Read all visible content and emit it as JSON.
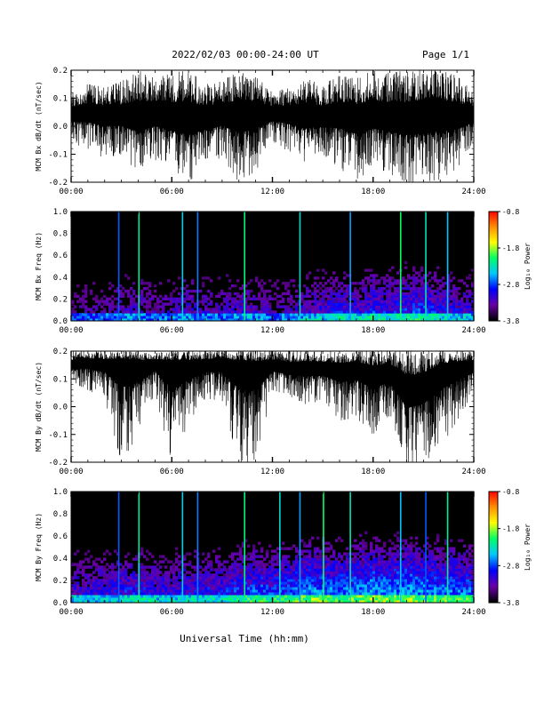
{
  "header": {
    "title": "2022/02/03  00:00-24:00 UT",
    "page": "Page 1/1"
  },
  "footer": {
    "xlabel": "Universal Time (hh:mm)"
  },
  "colorbar": {
    "label": "Log₁₀ Power",
    "ticks": [
      "-0.8",
      "-1.8",
      "-2.8",
      "-3.8"
    ],
    "tick_values": [
      -0.8,
      -1.8,
      -2.8,
      -3.8
    ],
    "range": [
      -3.8,
      -0.8
    ],
    "colormap": [
      "#000000",
      "#6a00a8",
      "#0000ff",
      "#00c8ff",
      "#00ff64",
      "#ffff00",
      "#ff8c00",
      "#ff0000"
    ]
  },
  "chart_data": [
    {
      "type": "line",
      "title": "",
      "ylabel": "MCM Bx dB/dt (nT/sec)",
      "xlabel": "",
      "xlim": [
        0,
        24
      ],
      "ylim": [
        -0.2,
        0.2
      ],
      "xticks": [
        "00:00",
        "06:00",
        "12:00",
        "18:00",
        "24:00"
      ],
      "yticks": [
        "0.2",
        "0.1",
        "0.0",
        "-0.1",
        "-0.2"
      ],
      "ytick_values": [
        0.2,
        0.1,
        0.0,
        -0.1,
        -0.2
      ],
      "grid": false,
      "series": [
        {
          "color": "#000000",
          "x": [
            0,
            1,
            2,
            3,
            4,
            5,
            6,
            7,
            8,
            9,
            10,
            11,
            12,
            13,
            14,
            15,
            16,
            17,
            18,
            19,
            20,
            21,
            22,
            23,
            24
          ],
          "baseline": [
            0.04,
            0.045,
            0.04,
            0.035,
            0.03,
            0.04,
            0.03,
            0.025,
            0.03,
            0.04,
            0.035,
            0.04,
            0.045,
            0.04,
            0.035,
            0.03,
            0.04,
            0.03,
            0.035,
            0.03,
            0.025,
            0.03,
            0.04,
            0.035,
            0.04
          ],
          "envelope_high": [
            0.12,
            0.15,
            0.14,
            0.16,
            0.2,
            0.17,
            0.19,
            0.2,
            0.15,
            0.16,
            0.2,
            0.18,
            0.12,
            0.14,
            0.17,
            0.15,
            0.18,
            0.17,
            0.2,
            0.19,
            0.2,
            0.2,
            0.2,
            0.18,
            0.12
          ],
          "envelope_low": [
            -0.06,
            -0.08,
            -0.12,
            -0.1,
            -0.17,
            -0.12,
            -0.15,
            -0.2,
            -0.14,
            -0.11,
            -0.2,
            -0.16,
            -0.06,
            -0.09,
            -0.13,
            -0.1,
            -0.15,
            -0.2,
            -0.14,
            -0.17,
            -0.2,
            -0.2,
            -0.19,
            -0.15,
            -0.06
          ]
        }
      ]
    },
    {
      "type": "heatmap",
      "title": "",
      "ylabel": "MCM Bx Freq (Hz)",
      "xlabel": "",
      "xlim": [
        0,
        24
      ],
      "ylim": [
        0.0,
        1.0
      ],
      "xticks": [
        "00:00",
        "06:00",
        "12:00",
        "18:00",
        "24:00"
      ],
      "yticks": [
        "1.0",
        "0.8",
        "0.6",
        "0.4",
        "0.2",
        "0.0"
      ],
      "ytick_values": [
        1.0,
        0.8,
        0.6,
        0.4,
        0.2,
        0.0
      ],
      "value_range": [
        -3.8,
        -0.8
      ],
      "activity_hourly": [
        0.25,
        0.25,
        0.3,
        0.35,
        0.4,
        0.3,
        0.35,
        0.4,
        0.35,
        0.35,
        0.45,
        0.4,
        0.3,
        0.35,
        0.45,
        0.5,
        0.55,
        0.5,
        0.6,
        0.55,
        0.6,
        0.65,
        0.55,
        0.5,
        0.45
      ],
      "strong_lines_hours": [
        2.8,
        4.0,
        6.6,
        7.5,
        10.3,
        13.6,
        16.6,
        19.6,
        21.1,
        22.4
      ]
    },
    {
      "type": "line",
      "title": "",
      "ylabel": "MCM By dB/dt (nT/sec)",
      "xlabel": "",
      "xlim": [
        0,
        24
      ],
      "ylim": [
        -0.2,
        0.2
      ],
      "xticks": [
        "00:00",
        "06:00",
        "12:00",
        "18:00",
        "24:00"
      ],
      "yticks": [
        "0.2",
        "0.1",
        "0.0",
        "-0.1",
        "-0.2"
      ],
      "ytick_values": [
        0.2,
        0.1,
        0.0,
        -0.1,
        -0.2
      ],
      "grid": false,
      "series": [
        {
          "color": "#000000",
          "x": [
            0,
            1,
            2,
            3,
            4,
            5,
            6,
            7,
            8,
            9,
            10,
            11,
            12,
            13,
            14,
            15,
            16,
            17,
            18,
            19,
            20,
            21,
            22,
            23,
            24
          ],
          "baseline": [
            0.15,
            0.16,
            0.155,
            0.16,
            0.15,
            0.155,
            0.15,
            0.15,
            0.155,
            0.16,
            0.15,
            0.145,
            0.15,
            0.14,
            0.145,
            0.14,
            0.135,
            0.14,
            0.12,
            0.13,
            0.06,
            0.08,
            0.13,
            0.14,
            0.15
          ],
          "envelope_high": [
            0.2,
            0.2,
            0.2,
            0.2,
            0.2,
            0.2,
            0.2,
            0.2,
            0.2,
            0.2,
            0.2,
            0.2,
            0.2,
            0.2,
            0.2,
            0.2,
            0.2,
            0.2,
            0.2,
            0.2,
            0.2,
            0.2,
            0.2,
            0.2,
            0.2
          ],
          "envelope_low": [
            0.09,
            0.06,
            0.03,
            -0.2,
            -0.1,
            0.05,
            -0.2,
            -0.07,
            0.03,
            0.02,
            -0.2,
            -0.2,
            0.06,
            0.04,
            0.0,
            0.03,
            -0.05,
            -0.04,
            -0.1,
            -0.03,
            -0.2,
            -0.2,
            -0.15,
            -0.05,
            0.05
          ]
        }
      ]
    },
    {
      "type": "heatmap",
      "title": "",
      "ylabel": "MCM By Freq (Hz)",
      "xlabel": "",
      "xlim": [
        0,
        24
      ],
      "ylim": [
        0.0,
        1.0
      ],
      "xticks": [
        "00:00",
        "06:00",
        "12:00",
        "18:00",
        "24:00"
      ],
      "yticks": [
        "1.0",
        "0.8",
        "0.6",
        "0.4",
        "0.2",
        "0.0"
      ],
      "ytick_values": [
        1.0,
        0.8,
        0.6,
        0.4,
        0.2,
        0.0
      ],
      "value_range": [
        -3.8,
        -0.8
      ],
      "activity_hourly": [
        0.45,
        0.45,
        0.5,
        0.55,
        0.6,
        0.5,
        0.5,
        0.55,
        0.55,
        0.55,
        0.65,
        0.7,
        0.65,
        0.7,
        0.8,
        0.8,
        0.75,
        0.8,
        0.85,
        0.8,
        0.85,
        0.8,
        0.75,
        0.75,
        0.7
      ],
      "strong_lines_hours": [
        2.8,
        4.0,
        6.6,
        7.5,
        10.3,
        12.4,
        13.6,
        15.0,
        16.6,
        19.6,
        21.1,
        22.4
      ]
    }
  ]
}
